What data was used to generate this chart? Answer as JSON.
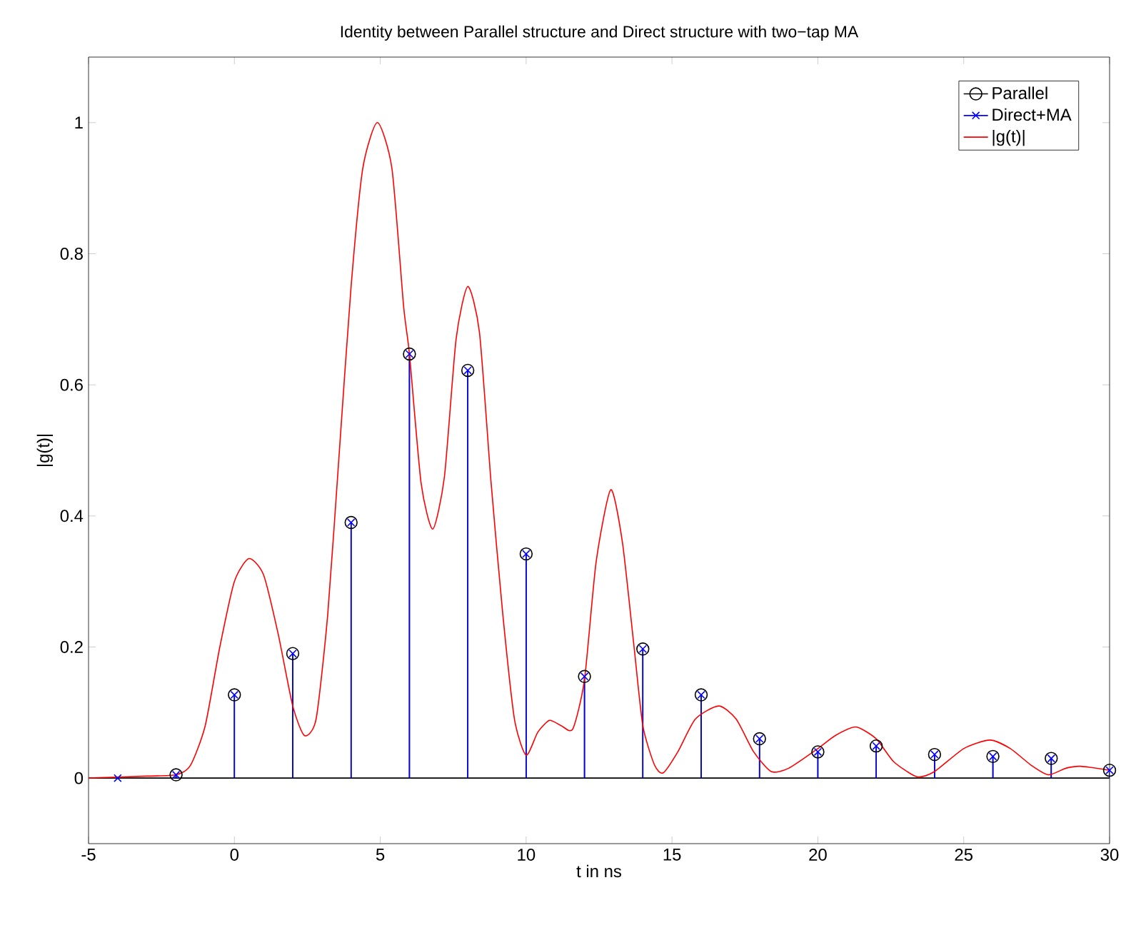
{
  "chart_data": {
    "type": "line",
    "title": "Identity between Parallel structure and Direct structure with two−tap MA",
    "xlabel": "t in ns",
    "ylabel": "|g(t)|",
    "xlim": [
      -5,
      30
    ],
    "ylim": [
      -0.1,
      1.1
    ],
    "xticks": [
      -5,
      0,
      5,
      10,
      15,
      20,
      25,
      30
    ],
    "yticks": [
      0,
      0.2,
      0.4,
      0.6,
      0.8,
      1
    ],
    "legend": "top right",
    "grid": false,
    "ref_lines": [
      {
        "axis": "y",
        "value": 0,
        "color": "#000000"
      }
    ],
    "series": [
      {
        "name": "Parallel",
        "type": "lollipop",
        "marker": "circle",
        "color": "#000000",
        "x": [
          -2,
          0,
          2,
          4,
          6,
          8,
          10,
          12,
          14,
          16,
          18,
          20,
          22,
          24,
          26,
          28,
          30
        ],
        "values": [
          0.005,
          0.127,
          0.19,
          0.39,
          0.647,
          0.622,
          0.342,
          0.155,
          0.197,
          0.127,
          0.06,
          0.04,
          0.049,
          0.036,
          0.033,
          0.03,
          0.012
        ]
      },
      {
        "name": "Direct+MA",
        "type": "lollipop",
        "marker": "cross",
        "color": "#0000ff",
        "x": [
          -4,
          -2,
          0,
          2,
          4,
          6,
          8,
          10,
          12,
          14,
          16,
          18,
          20,
          22,
          24,
          26,
          28,
          30
        ],
        "values": [
          0,
          0.005,
          0.127,
          0.19,
          0.39,
          0.647,
          0.622,
          0.342,
          0.155,
          0.197,
          0.127,
          0.06,
          0.04,
          0.049,
          0.036,
          0.033,
          0.03,
          0.012
        ]
      },
      {
        "name": "|g(t)|",
        "marker": "none",
        "color": "#ff0000",
        "x": [
          -5,
          -3,
          -2,
          -1.5,
          -1,
          -0.5,
          0,
          0.5,
          1,
          1.5,
          2,
          2.4,
          2.8,
          3.2,
          3.6,
          4,
          4.4,
          4.9,
          5.4,
          5.8,
          6,
          6.4,
          6.8,
          7.2,
          7.6,
          8,
          8.4,
          8.8,
          9.2,
          9.6,
          10,
          10.4,
          10.8,
          11.2,
          11.6,
          12,
          12.4,
          12.9,
          13.3,
          13.7,
          14,
          14.4,
          14.7,
          15.2,
          15.8,
          16.6,
          17.2,
          17.8,
          18.4,
          19,
          20,
          20.6,
          21.3,
          22,
          22.6,
          23.4,
          24,
          25,
          25.9,
          26.6,
          27.3,
          27.9,
          28.5,
          29,
          30
        ],
        "values": [
          0,
          0.003,
          0.005,
          0.02,
          0.08,
          0.2,
          0.3,
          0.335,
          0.31,
          0.22,
          0.11,
          0.065,
          0.09,
          0.25,
          0.5,
          0.75,
          0.93,
          1.0,
          0.93,
          0.72,
          0.647,
          0.45,
          0.38,
          0.46,
          0.67,
          0.75,
          0.68,
          0.45,
          0.25,
          0.09,
          0.035,
          0.07,
          0.088,
          0.08,
          0.075,
          0.15,
          0.33,
          0.44,
          0.36,
          0.2,
          0.08,
          0.02,
          0.008,
          0.04,
          0.09,
          0.11,
          0.09,
          0.04,
          0.01,
          0.015,
          0.045,
          0.065,
          0.078,
          0.06,
          0.025,
          0.002,
          0.01,
          0.045,
          0.058,
          0.045,
          0.02,
          0.005,
          0.015,
          0.018,
          0.012
        ]
      }
    ]
  }
}
